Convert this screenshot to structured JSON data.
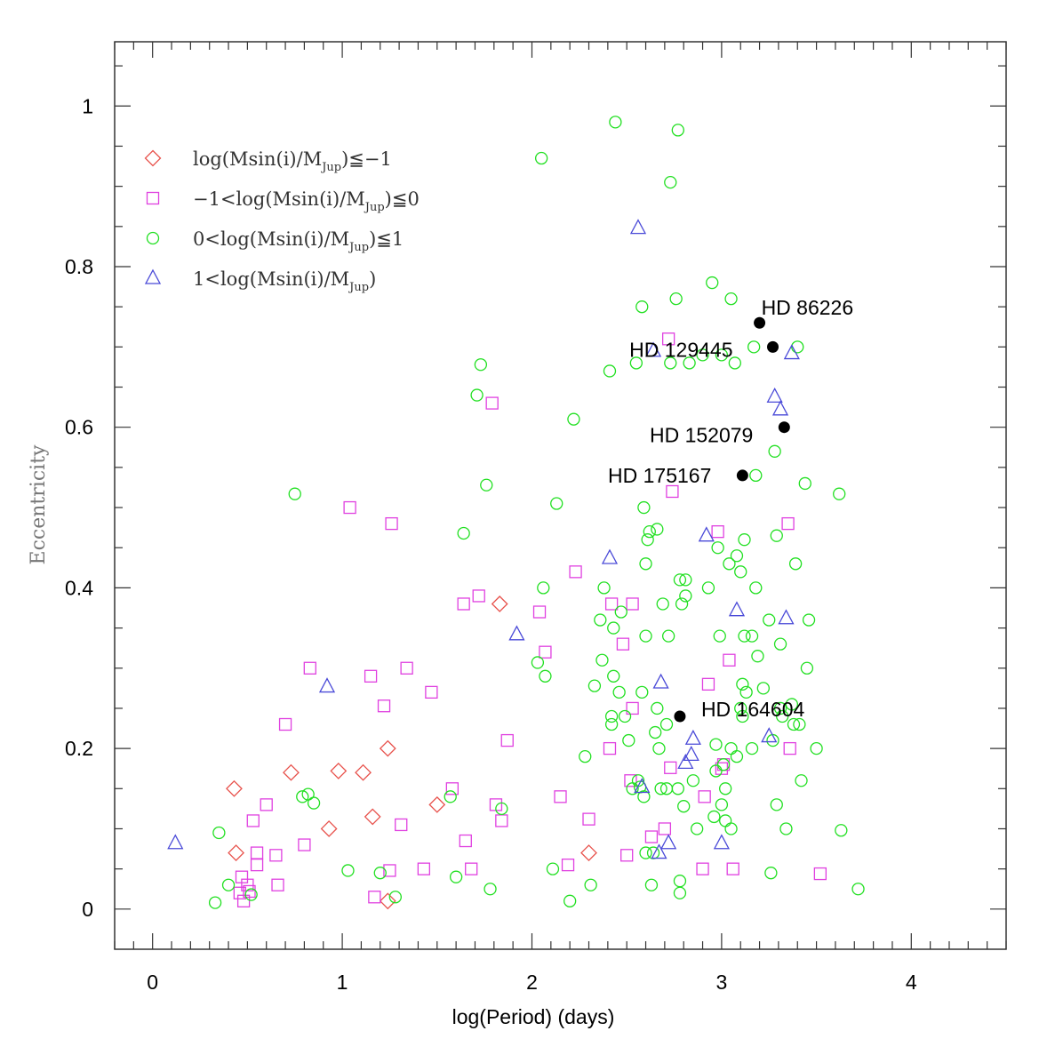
{
  "chart_data": {
    "type": "scatter",
    "xlabel": "log(Period) (days)",
    "ylabel": "Eccentricity",
    "xlim": [
      -0.2,
      4.5
    ],
    "ylim": [
      -0.05,
      1.08
    ],
    "xticks": [
      "0",
      "1",
      "2",
      "3",
      "4"
    ],
    "yticks": [
      "0",
      "0.2",
      "0.4",
      "0.6",
      "0.8",
      "1"
    ],
    "legend_position": "top-left",
    "series": [
      {
        "name": "log(Msin(i)/MJup)≦−1",
        "name_parts": {
          "pre": "log(Msin(i)/M",
          "sub": "Jup",
          "post": ")≦−1"
        },
        "marker": "diamond",
        "color": "#e8524c",
        "points": [
          [
            0.43,
            0.15
          ],
          [
            0.44,
            0.07
          ],
          [
            0.73,
            0.17
          ],
          [
            0.93,
            0.1
          ],
          [
            0.98,
            0.172
          ],
          [
            1.11,
            0.17
          ],
          [
            1.16,
            0.115
          ],
          [
            1.24,
            0.2
          ],
          [
            1.24,
            0.01
          ],
          [
            1.5,
            0.13
          ],
          [
            1.83,
            0.38
          ],
          [
            2.3,
            0.07
          ]
        ]
      },
      {
        "name": "−1<log(Msin(i)/MJup)≦0",
        "name_parts": {
          "pre": "−1<log(Msin(i)/M",
          "sub": "Jup",
          "post": ")≦0"
        },
        "marker": "square",
        "color": "#e040e0",
        "points": [
          [
            0.46,
            0.02
          ],
          [
            0.47,
            0.04
          ],
          [
            0.48,
            0.01
          ],
          [
            0.5,
            0.03
          ],
          [
            0.51,
            0.022
          ],
          [
            0.53,
            0.11
          ],
          [
            0.55,
            0.07
          ],
          [
            0.55,
            0.055
          ],
          [
            0.6,
            0.13
          ],
          [
            0.65,
            0.067
          ],
          [
            0.66,
            0.03
          ],
          [
            0.7,
            0.23
          ],
          [
            0.8,
            0.08
          ],
          [
            0.83,
            0.3
          ],
          [
            1.04,
            0.5
          ],
          [
            1.15,
            0.29
          ],
          [
            1.17,
            0.015
          ],
          [
            1.22,
            0.253
          ],
          [
            1.25,
            0.048
          ],
          [
            1.26,
            0.48
          ],
          [
            1.31,
            0.105
          ],
          [
            1.34,
            0.3
          ],
          [
            1.43,
            0.05
          ],
          [
            1.47,
            0.27
          ],
          [
            1.58,
            0.15
          ],
          [
            1.64,
            0.38
          ],
          [
            1.65,
            0.085
          ],
          [
            1.68,
            0.05
          ],
          [
            1.72,
            0.39
          ],
          [
            1.79,
            0.63
          ],
          [
            1.81,
            0.13
          ],
          [
            1.84,
            0.11
          ],
          [
            1.87,
            0.21
          ],
          [
            2.04,
            0.37
          ],
          [
            2.07,
            0.32
          ],
          [
            2.15,
            0.14
          ],
          [
            2.19,
            0.055
          ],
          [
            2.23,
            0.42
          ],
          [
            2.3,
            0.112
          ],
          [
            2.41,
            0.2
          ],
          [
            2.42,
            0.38
          ],
          [
            2.48,
            0.33
          ],
          [
            2.5,
            0.067
          ],
          [
            2.52,
            0.16
          ],
          [
            2.53,
            0.25
          ],
          [
            2.53,
            0.38
          ],
          [
            2.63,
            0.09
          ],
          [
            2.7,
            0.1
          ],
          [
            2.72,
            0.71
          ],
          [
            2.73,
            0.176
          ],
          [
            2.74,
            0.52
          ],
          [
            2.9,
            0.05
          ],
          [
            2.91,
            0.14
          ],
          [
            2.93,
            0.28
          ],
          [
            2.98,
            0.47
          ],
          [
            3.0,
            0.175
          ],
          [
            3.01,
            0.18
          ],
          [
            3.04,
            0.31
          ],
          [
            3.06,
            0.05
          ],
          [
            3.35,
            0.48
          ],
          [
            3.36,
            0.2
          ],
          [
            3.52,
            0.044
          ]
        ]
      },
      {
        "name": "0<log(Msin(i)/MJup)≦1",
        "name_parts": {
          "pre": "0<log(Msin(i)/M",
          "sub": "Jup",
          "post": ")≦1"
        },
        "marker": "circle",
        "color": "#22e022",
        "points": [
          [
            0.33,
            0.008
          ],
          [
            0.35,
            0.095
          ],
          [
            0.4,
            0.03
          ],
          [
            0.52,
            0.018
          ],
          [
            0.75,
            0.517
          ],
          [
            0.79,
            0.14
          ],
          [
            0.82,
            0.143
          ],
          [
            0.85,
            0.132
          ],
          [
            1.03,
            0.048
          ],
          [
            1.2,
            0.045
          ],
          [
            1.28,
            0.015
          ],
          [
            1.57,
            0.14
          ],
          [
            1.6,
            0.04
          ],
          [
            1.64,
            0.468
          ],
          [
            1.71,
            0.64
          ],
          [
            1.73,
            0.678
          ],
          [
            1.76,
            0.528
          ],
          [
            1.78,
            0.025
          ],
          [
            1.84,
            0.125
          ],
          [
            2.03,
            0.307
          ],
          [
            2.05,
            0.935
          ],
          [
            2.06,
            0.4
          ],
          [
            2.07,
            0.29
          ],
          [
            2.11,
            0.05
          ],
          [
            2.13,
            0.505
          ],
          [
            2.2,
            0.01
          ],
          [
            2.22,
            0.61
          ],
          [
            2.28,
            0.19
          ],
          [
            2.31,
            0.03
          ],
          [
            2.33,
            0.278
          ],
          [
            2.36,
            0.36
          ],
          [
            2.37,
            0.31
          ],
          [
            2.38,
            0.4
          ],
          [
            2.41,
            0.67
          ],
          [
            2.42,
            0.24
          ],
          [
            2.42,
            0.23
          ],
          [
            2.43,
            0.29
          ],
          [
            2.43,
            0.35
          ],
          [
            2.44,
            0.98
          ],
          [
            2.46,
            0.27
          ],
          [
            2.47,
            0.37
          ],
          [
            2.49,
            0.24
          ],
          [
            2.51,
            0.21
          ],
          [
            2.53,
            0.15
          ],
          [
            2.55,
            0.68
          ],
          [
            2.56,
            0.16
          ],
          [
            2.57,
            0.152
          ],
          [
            2.58,
            0.75
          ],
          [
            2.58,
            0.27
          ],
          [
            2.59,
            0.5
          ],
          [
            2.59,
            0.14
          ],
          [
            2.6,
            0.07
          ],
          [
            2.6,
            0.43
          ],
          [
            2.6,
            0.34
          ],
          [
            2.61,
            0.46
          ],
          [
            2.62,
            0.47
          ],
          [
            2.63,
            0.03
          ],
          [
            2.64,
            0.07
          ],
          [
            2.65,
            0.22
          ],
          [
            2.66,
            0.473
          ],
          [
            2.66,
            0.25
          ],
          [
            2.67,
            0.2
          ],
          [
            2.68,
            0.15
          ],
          [
            2.69,
            0.38
          ],
          [
            2.71,
            0.23
          ],
          [
            2.71,
            0.15
          ],
          [
            2.72,
            0.34
          ],
          [
            2.73,
            0.68
          ],
          [
            2.73,
            0.905
          ],
          [
            2.76,
            0.76
          ],
          [
            2.77,
            0.97
          ],
          [
            2.77,
            0.15
          ],
          [
            2.78,
            0.035
          ],
          [
            2.78,
            0.02
          ],
          [
            2.78,
            0.41
          ],
          [
            2.79,
            0.38
          ],
          [
            2.8,
            0.128
          ],
          [
            2.81,
            0.41
          ],
          [
            2.81,
            0.39
          ],
          [
            2.83,
            0.68
          ],
          [
            2.85,
            0.16
          ],
          [
            2.87,
            0.1
          ],
          [
            2.9,
            0.69
          ],
          [
            2.93,
            0.4
          ],
          [
            2.95,
            0.78
          ],
          [
            2.96,
            0.115
          ],
          [
            2.97,
            0.172
          ],
          [
            2.97,
            0.205
          ],
          [
            2.98,
            0.45
          ],
          [
            2.99,
            0.34
          ],
          [
            3.0,
            0.69
          ],
          [
            3.0,
            0.13
          ],
          [
            3.01,
            0.18
          ],
          [
            3.02,
            0.15
          ],
          [
            3.02,
            0.11
          ],
          [
            3.04,
            0.43
          ],
          [
            3.05,
            0.76
          ],
          [
            3.05,
            0.2
          ],
          [
            3.05,
            0.1
          ],
          [
            3.07,
            0.68
          ],
          [
            3.08,
            0.19
          ],
          [
            3.08,
            0.44
          ],
          [
            3.1,
            0.42
          ],
          [
            3.1,
            0.25
          ],
          [
            3.11,
            0.24
          ],
          [
            3.11,
            0.28
          ],
          [
            3.12,
            0.34
          ],
          [
            3.12,
            0.46
          ],
          [
            3.13,
            0.27
          ],
          [
            3.16,
            0.34
          ],
          [
            3.16,
            0.2
          ],
          [
            3.17,
            0.7
          ],
          [
            3.18,
            0.54
          ],
          [
            3.18,
            0.4
          ],
          [
            3.19,
            0.315
          ],
          [
            3.22,
            0.275
          ],
          [
            3.25,
            0.36
          ],
          [
            3.26,
            0.045
          ],
          [
            3.27,
            0.21
          ],
          [
            3.28,
            0.57
          ],
          [
            3.29,
            0.465
          ],
          [
            3.29,
            0.13
          ],
          [
            3.31,
            0.33
          ],
          [
            3.31,
            0.25
          ],
          [
            3.32,
            0.24
          ],
          [
            3.34,
            0.1
          ],
          [
            3.37,
            0.255
          ],
          [
            3.38,
            0.23
          ],
          [
            3.39,
            0.43
          ],
          [
            3.4,
            0.7
          ],
          [
            3.41,
            0.23
          ],
          [
            3.42,
            0.16
          ],
          [
            3.44,
            0.53
          ],
          [
            3.45,
            0.3
          ],
          [
            3.46,
            0.36
          ],
          [
            3.5,
            0.2
          ],
          [
            3.62,
            0.517
          ],
          [
            3.63,
            0.098
          ],
          [
            3.72,
            0.025
          ]
        ]
      },
      {
        "name": "1<log(Msin(i)/MJup)",
        "name_parts": {
          "pre": "1<log(Msin(i)/M",
          "sub": "Jup",
          "post": ")"
        },
        "marker": "triangle",
        "color": "#4a4ad8",
        "points": [
          [
            0.12,
            0.082
          ],
          [
            0.92,
            0.277
          ],
          [
            1.92,
            0.342
          ],
          [
            2.41,
            0.437
          ],
          [
            2.56,
            0.848
          ],
          [
            2.58,
            0.152
          ],
          [
            2.64,
            0.695
          ],
          [
            2.67,
            0.07
          ],
          [
            2.68,
            0.282
          ],
          [
            2.72,
            0.082
          ],
          [
            2.81,
            0.182
          ],
          [
            2.84,
            0.192
          ],
          [
            2.85,
            0.212
          ],
          [
            2.92,
            0.465
          ],
          [
            3.0,
            0.082
          ],
          [
            3.08,
            0.372
          ],
          [
            3.25,
            0.215
          ],
          [
            3.28,
            0.638
          ],
          [
            3.31,
            0.622
          ],
          [
            3.34,
            0.362
          ],
          [
            3.37,
            0.692
          ]
        ]
      },
      {
        "name": "",
        "marker": "filled-circle",
        "color": "#000000",
        "points": [
          [
            3.2,
            0.73
          ],
          [
            3.27,
            0.7
          ],
          [
            3.33,
            0.6
          ],
          [
            3.11,
            0.54
          ],
          [
            2.78,
            0.24
          ]
        ]
      }
    ],
    "annotations": [
      {
        "text": "HD 86226",
        "x": 3.2,
        "y": 0.73
      },
      {
        "text": "HD 129445",
        "x": 3.27,
        "y": 0.7
      },
      {
        "text": "HD 152079",
        "x": 3.33,
        "y": 0.6
      },
      {
        "text": "HD 175167",
        "x": 3.11,
        "y": 0.54
      },
      {
        "text": "HD 164604",
        "x": 2.78,
        "y": 0.24
      }
    ]
  }
}
